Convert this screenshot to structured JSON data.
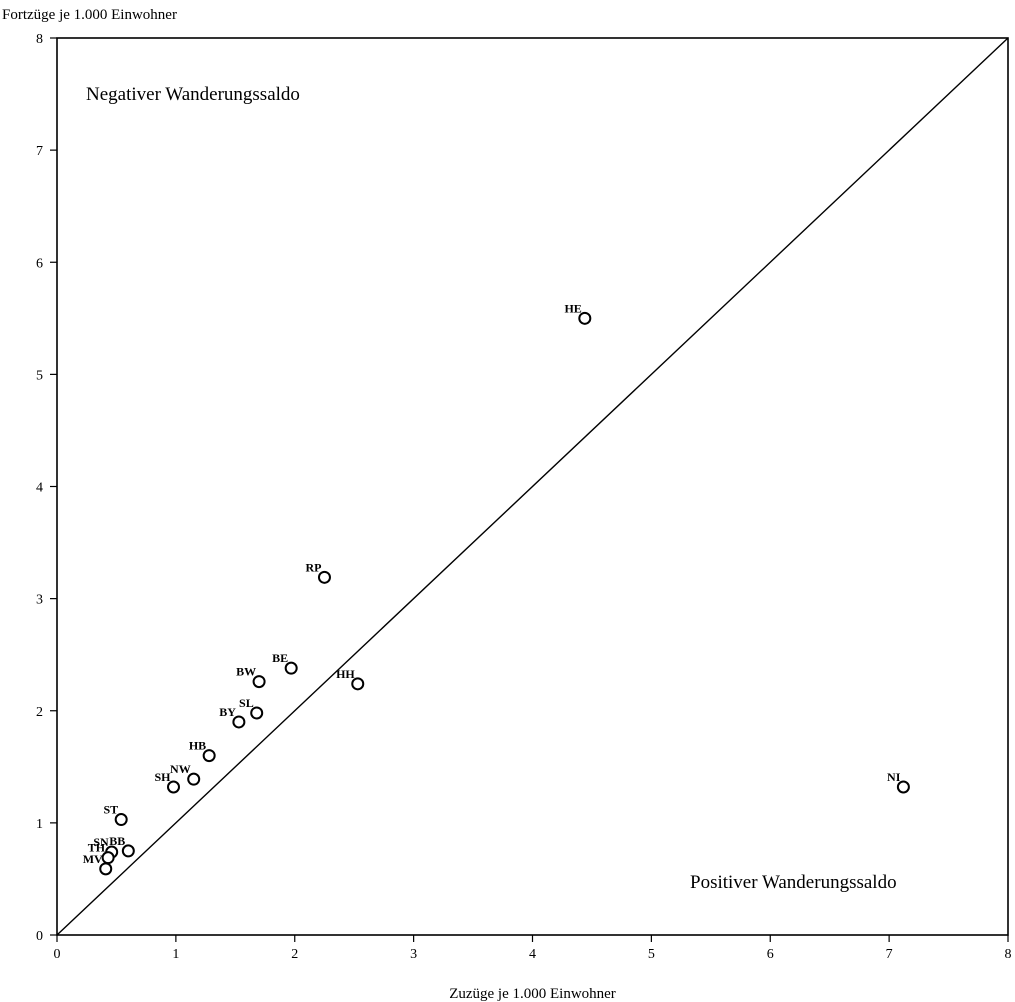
{
  "chart_data": {
    "type": "scatter",
    "title": "",
    "xlabel": "Zuzüge je 1.000 Einwohner",
    "ylabel": "Fortzüge je 1.000 Einwohner",
    "xlim": [
      0,
      8
    ],
    "ylim": [
      0,
      8
    ],
    "x_ticks": [
      "0",
      "1",
      "2",
      "3",
      "4",
      "5",
      "6",
      "7",
      "8"
    ],
    "y_ticks": [
      "0",
      "1",
      "2",
      "3",
      "4",
      "5",
      "6",
      "7",
      "8"
    ],
    "grid": false,
    "diagonal_line": true,
    "annotations": {
      "upper_left": "Negativer Wanderungssaldo",
      "lower_right": "Positiver Wanderungssaldo"
    },
    "points": [
      {
        "label": "HE",
        "x": 4.44,
        "y": 5.5
      },
      {
        "label": "NI",
        "x": 7.12,
        "y": 1.32
      },
      {
        "label": "RP",
        "x": 2.25,
        "y": 3.19
      },
      {
        "label": "BE",
        "x": 1.97,
        "y": 2.38
      },
      {
        "label": "BW",
        "x": 1.7,
        "y": 2.26
      },
      {
        "label": "HH",
        "x": 2.53,
        "y": 2.24
      },
      {
        "label": "SL",
        "x": 1.68,
        "y": 1.98
      },
      {
        "label": "BY",
        "x": 1.53,
        "y": 1.9
      },
      {
        "label": "HB",
        "x": 1.28,
        "y": 1.6
      },
      {
        "label": "NW",
        "x": 1.15,
        "y": 1.39
      },
      {
        "label": "SH",
        "x": 0.98,
        "y": 1.32
      },
      {
        "label": "ST",
        "x": 0.54,
        "y": 1.03
      },
      {
        "label": "SN",
        "x": 0.46,
        "y": 0.74
      },
      {
        "label": "BB",
        "x": 0.6,
        "y": 0.75
      },
      {
        "label": "TH",
        "x": 0.43,
        "y": 0.69
      },
      {
        "label": "MV",
        "x": 0.41,
        "y": 0.59
      }
    ]
  }
}
